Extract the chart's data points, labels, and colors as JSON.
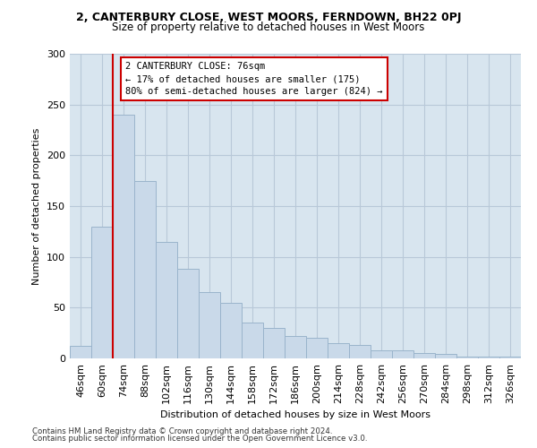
{
  "title1": "2, CANTERBURY CLOSE, WEST MOORS, FERNDOWN, BH22 0PJ",
  "title2": "Size of property relative to detached houses in West Moors",
  "xlabel": "Distribution of detached houses by size in West Moors",
  "ylabel": "Number of detached properties",
  "categories": [
    "46sqm",
    "60sqm",
    "74sqm",
    "88sqm",
    "102sqm",
    "116sqm",
    "130sqm",
    "144sqm",
    "158sqm",
    "172sqm",
    "186sqm",
    "200sqm",
    "214sqm",
    "228sqm",
    "242sqm",
    "256sqm",
    "270sqm",
    "284sqm",
    "298sqm",
    "312sqm",
    "326sqm"
  ],
  "values": [
    12,
    130,
    240,
    175,
    115,
    88,
    65,
    55,
    35,
    30,
    22,
    20,
    15,
    13,
    8,
    8,
    5,
    4,
    2,
    2,
    2
  ],
  "bar_color": "#c9d9e9",
  "bar_edge_color": "#9ab4cc",
  "vline_color": "#cc0000",
  "annotation_text": "2 CANTERBURY CLOSE: 76sqm\n← 17% of detached houses are smaller (175)\n80% of semi-detached houses are larger (824) →",
  "annotation_box_color": "#ffffff",
  "annotation_box_edge": "#cc0000",
  "grid_color": "#b8c8d8",
  "background_color": "#d8e5ef",
  "ylim": [
    0,
    300
  ],
  "yticks": [
    0,
    50,
    100,
    150,
    200,
    250,
    300
  ],
  "footer1": "Contains HM Land Registry data © Crown copyright and database right 2024.",
  "footer2": "Contains public sector information licensed under the Open Government Licence v3.0."
}
